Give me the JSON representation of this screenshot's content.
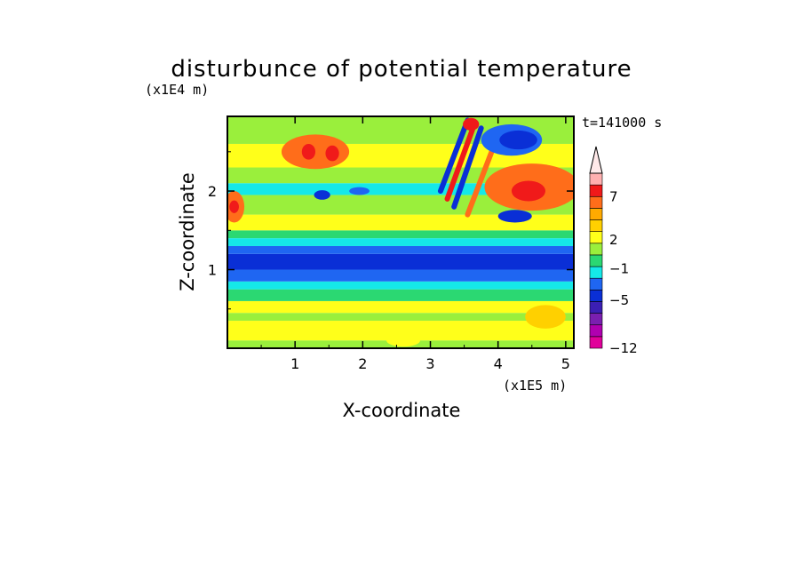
{
  "chart_data": {
    "type": "heatmap",
    "title": "disturbunce of potential temperature",
    "xlabel": "X-coordinate",
    "ylabel": "Z-coordinate",
    "x_unit": "(x1E5 m)",
    "y_unit": "(x1E4 m)",
    "time_label": "t=141000 s",
    "x_ticks": [
      "1",
      "2",
      "3",
      "4",
      "5"
    ],
    "y_ticks": [
      "1",
      "2"
    ],
    "xlim": [
      0,
      5.12
    ],
    "ylim": [
      0,
      2.95
    ],
    "colorbar_labels": [
      "7",
      "2",
      "-1",
      "-5",
      "-12"
    ],
    "colorbar_extend_top": true,
    "level_colors": [
      "#e0009a",
      "#b000b0",
      "#7a1fb0",
      "#3b1fb4",
      "#0a2fd6",
      "#1f66f2",
      "#15e8e8",
      "#2bd872",
      "#9aef3c",
      "#ffff1a",
      "#ffd000",
      "#ffaa00",
      "#ff6d1a",
      "#f01a1a",
      "#ffb0b0"
    ],
    "regions": [
      {
        "c": 8,
        "z": [
          0,
          0.1
        ]
      },
      {
        "c": 9,
        "z": [
          0.1,
          0.35
        ]
      },
      {
        "c": 8,
        "z": [
          0.35,
          0.45
        ]
      },
      {
        "c": 9,
        "z": [
          0.45,
          0.6
        ]
      },
      {
        "c": 7,
        "z": [
          0.6,
          0.75
        ]
      },
      {
        "c": 6,
        "z": [
          0.75,
          0.85
        ]
      },
      {
        "c": 5,
        "z": [
          0.85,
          1.0
        ]
      },
      {
        "c": 4,
        "z": [
          1.0,
          1.2
        ]
      },
      {
        "c": 5,
        "z": [
          1.2,
          1.3
        ]
      },
      {
        "c": 6,
        "z": [
          1.3,
          1.4
        ]
      },
      {
        "c": 7,
        "z": [
          1.4,
          1.5
        ]
      },
      {
        "c": 9,
        "z": [
          1.5,
          1.7
        ]
      },
      {
        "c": 8,
        "z": [
          1.7,
          1.95
        ]
      },
      {
        "c": 6,
        "z": [
          1.95,
          2.1
        ]
      },
      {
        "c": 8,
        "z": [
          2.1,
          2.3
        ]
      },
      {
        "c": 9,
        "z": [
          2.3,
          2.6
        ]
      },
      {
        "c": 8,
        "z": [
          2.6,
          2.95
        ]
      }
    ],
    "blobs": [
      {
        "x": 0.1,
        "z": 1.8,
        "rx": 0.15,
        "rz": 0.2,
        "c": 12
      },
      {
        "x": 0.1,
        "z": 1.8,
        "rx": 0.07,
        "rz": 0.08,
        "c": 13
      },
      {
        "x": 1.3,
        "z": 2.5,
        "rx": 0.5,
        "rz": 0.22,
        "c": 12
      },
      {
        "x": 1.2,
        "z": 2.5,
        "rx": 0.1,
        "rz": 0.1,
        "c": 13
      },
      {
        "x": 1.55,
        "z": 2.48,
        "rx": 0.1,
        "rz": 0.1,
        "c": 13
      },
      {
        "x": 4.5,
        "z": 2.05,
        "rx": 0.7,
        "rz": 0.3,
        "c": 12
      },
      {
        "x": 4.45,
        "z": 2.0,
        "rx": 0.25,
        "rz": 0.13,
        "c": 13
      },
      {
        "x": 4.2,
        "z": 2.65,
        "rx": 0.45,
        "rz": 0.2,
        "c": 5
      },
      {
        "x": 4.3,
        "z": 2.65,
        "rx": 0.28,
        "rz": 0.12,
        "c": 4
      },
      {
        "x": 4.25,
        "z": 1.68,
        "rx": 0.25,
        "rz": 0.08,
        "c": 4
      },
      {
        "x": 1.4,
        "z": 1.95,
        "rx": 0.12,
        "rz": 0.06,
        "c": 4
      },
      {
        "x": 1.95,
        "z": 2.0,
        "rx": 0.15,
        "rz": 0.05,
        "c": 5
      },
      {
        "x": 3.6,
        "z": 2.85,
        "rx": 0.12,
        "rz": 0.08,
        "c": 13
      },
      {
        "x": 2.6,
        "z": 0.1,
        "rx": 0.25,
        "rz": 0.08,
        "c": 9
      },
      {
        "x": 4.7,
        "z": 0.4,
        "rx": 0.3,
        "rz": 0.15,
        "c": 10
      }
    ],
    "wave_streaks": [
      {
        "x1": 3.15,
        "z1": 2.0,
        "x2": 3.55,
        "z2": 2.9,
        "c": 4
      },
      {
        "x1": 3.35,
        "z1": 1.8,
        "x2": 3.75,
        "z2": 2.8,
        "c": 4
      },
      {
        "x1": 3.55,
        "z1": 1.7,
        "x2": 3.95,
        "z2": 2.6,
        "c": 12
      },
      {
        "x1": 3.25,
        "z1": 1.9,
        "x2": 3.65,
        "z2": 2.85,
        "c": 13
      }
    ]
  }
}
